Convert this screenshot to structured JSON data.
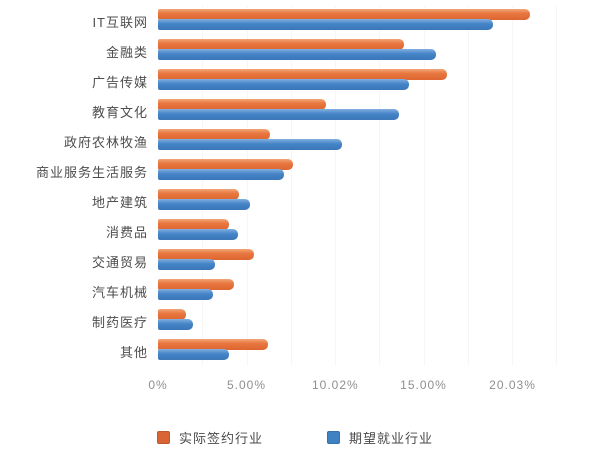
{
  "chart_data": {
    "type": "bar",
    "orientation": "horizontal",
    "title": "",
    "categories": [
      "IT互联网",
      "金融类",
      "广告传媒",
      "教育文化",
      "政府农林牧渔",
      "商业服务生活服务",
      "地产建筑",
      "消费品",
      "交通贸易",
      "汽车机械",
      "制药医疗",
      "其他"
    ],
    "series": [
      {
        "name": "实际签约行业",
        "color": "#dd6b3a",
        "values": [
          21.0,
          13.9,
          16.3,
          9.5,
          6.3,
          7.6,
          4.6,
          4.0,
          5.4,
          4.3,
          1.6,
          6.2
        ]
      },
      {
        "name": "期望就业行业",
        "color": "#4285c6",
        "values": [
          18.9,
          15.7,
          14.2,
          13.6,
          10.4,
          7.1,
          5.2,
          4.5,
          3.2,
          3.1,
          2.0,
          4.0
        ]
      }
    ],
    "x_axis": {
      "unit": "%",
      "ticks_percent": [
        0,
        5.0,
        10.02,
        15.0,
        20.03
      ],
      "tick_labels": [
        "0%",
        "5.00%",
        "10.02%",
        "15.00%",
        "20.03%"
      ],
      "range": [
        0,
        22.5
      ],
      "minor_gridline_step_percent": 2.5
    },
    "legend_position": "bottom",
    "grid": "faint vertical minor gridlines"
  }
}
